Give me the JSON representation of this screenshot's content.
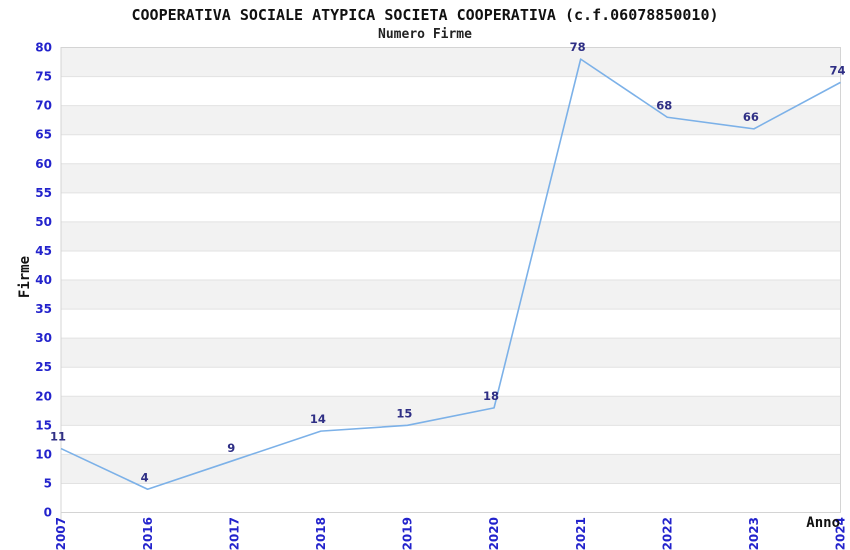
{
  "chart_data": {
    "type": "line",
    "title": "COOPERATIVA SOCIALE ATYPICA SOCIETA COOPERATIVA (c.f.06078850010)",
    "subtitle": "Numero Firme",
    "xlabel": "Anno",
    "ylabel": "Firme",
    "categories": [
      "2007",
      "2016",
      "2017",
      "2018",
      "2019",
      "2020",
      "2021",
      "2022",
      "2023",
      "2024"
    ],
    "values": [
      11,
      4,
      9,
      14,
      15,
      18,
      78,
      68,
      66,
      74
    ],
    "ylim": [
      0,
      80
    ],
    "ytick_step": 5,
    "grid": "horizontal-bands-alternating",
    "legend": "none",
    "data_labels": "shown",
    "colors": {
      "line": "#7cb1e8",
      "tick_label": "#2323cc",
      "data_label": "#2f2f85",
      "band": "#f2f2f2",
      "gridline": "#e2e2e2",
      "plot_border": "#d4d4d4",
      "title": "#111111",
      "background": "#ffffff"
    }
  }
}
